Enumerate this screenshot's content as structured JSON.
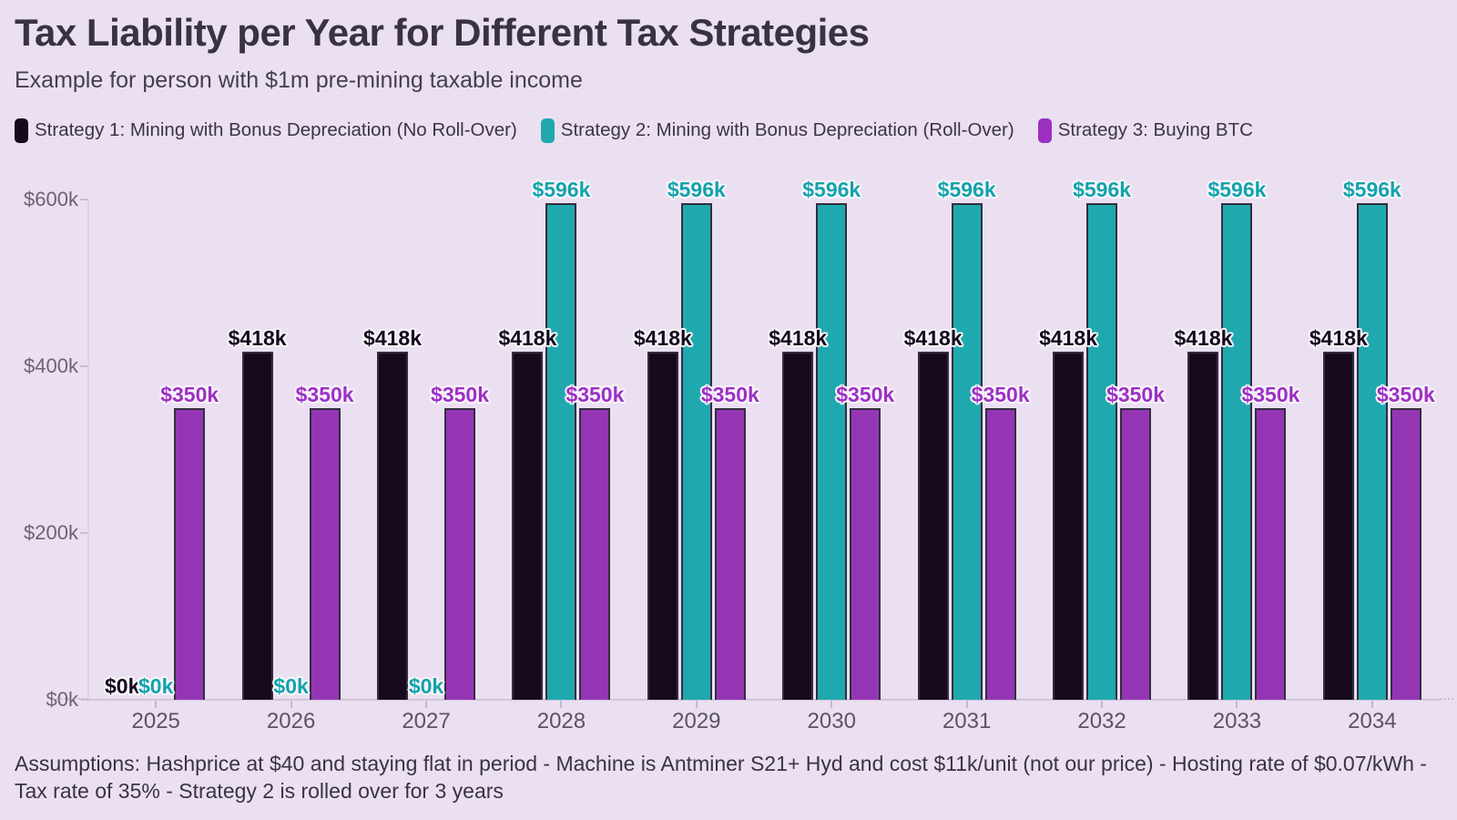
{
  "header": {
    "title": "Tax Liability per Year for Different Tax Strategies",
    "subtitle": "Example for person with $1m pre-mining taxable income"
  },
  "legend": [
    {
      "id": "strategy-1",
      "label": "Strategy 1: Mining with Bonus Depreciation (No Roll-Over)",
      "color": "#170a1e"
    },
    {
      "id": "strategy-2",
      "label": "Strategy 2: Mining with Bonus Depreciation (Roll-Over)",
      "color": "#1fa9ae"
    },
    {
      "id": "strategy-3",
      "label": "Strategy 3: Buying BTC",
      "color": "#9b2fc0"
    }
  ],
  "chart_data": {
    "type": "bar",
    "title": "Tax Liability per Year for Different Tax Strategies",
    "subtitle": "Example for person with $1m pre-mining taxable income",
    "categories": [
      "2025",
      "2026",
      "2027",
      "2028",
      "2029",
      "2030",
      "2031",
      "2032",
      "2033",
      "2034"
    ],
    "series": [
      {
        "id": "strategy-1",
        "name": "Strategy 1: Mining with Bonus Depreciation (No Roll-Over)",
        "color": "#170a1e",
        "label_color": "#15081c",
        "values": [
          0,
          418,
          418,
          418,
          418,
          418,
          418,
          418,
          418,
          418
        ],
        "labels": [
          "$0k",
          "$418k",
          "$418k",
          "$418k",
          "$418k",
          "$418k",
          "$418k",
          "$418k",
          "$418k",
          "$418k"
        ]
      },
      {
        "id": "strategy-2",
        "name": "Strategy 2: Mining with Bonus Depreciation (Roll-Over)",
        "color": "#1fa9ae",
        "label_color": "#13a3ab",
        "values": [
          0,
          0,
          0,
          596,
          596,
          596,
          596,
          596,
          596,
          596
        ],
        "labels": [
          "$0k",
          "$0k",
          "$0k",
          "$596k",
          "$596k",
          "$596k",
          "$596k",
          "$596k",
          "$596k",
          "$596k"
        ]
      },
      {
        "id": "strategy-3",
        "name": "Strategy 3: Buying BTC",
        "color": "#9436b4",
        "label_color": "#9d30c5",
        "values": [
          350,
          350,
          350,
          350,
          350,
          350,
          350,
          350,
          350,
          350
        ],
        "labels": [
          "$350k",
          "$350k",
          "$350k",
          "$350k",
          "$350k",
          "$350k",
          "$350k",
          "$350k",
          "$350k",
          "$350k"
        ]
      }
    ],
    "unit": "thousand USD",
    "ylim": [
      0,
      600
    ],
    "y_ticks": [
      {
        "value": 0,
        "label": "$0k"
      },
      {
        "value": 200,
        "label": "$200k"
      },
      {
        "value": 400,
        "label": "$400k"
      },
      {
        "value": 600,
        "label": "$600k"
      }
    ],
    "grid": false,
    "legend_position": "top"
  },
  "footer": {
    "assumptions": "Assumptions: Hashprice at $40 and staying flat in period - Machine is Antminer S21+ Hyd and cost $11k/unit (not our price) - Hosting rate of $0.07/kWh - Tax rate of 35% - Strategy 2 is rolled over for 3 years"
  },
  "colors": {
    "background": "#ebe0f1",
    "title_text": "#393242",
    "subtitle_text": "#453e50",
    "legend_text": "#3b3444",
    "axis_text": "#6b6375",
    "x_axis_text": "#5b5365",
    "footer_text": "#3a3344",
    "axis_line": "#d9cde3",
    "bar_border": "#342d3f",
    "label_halo": "#faf6fc"
  }
}
